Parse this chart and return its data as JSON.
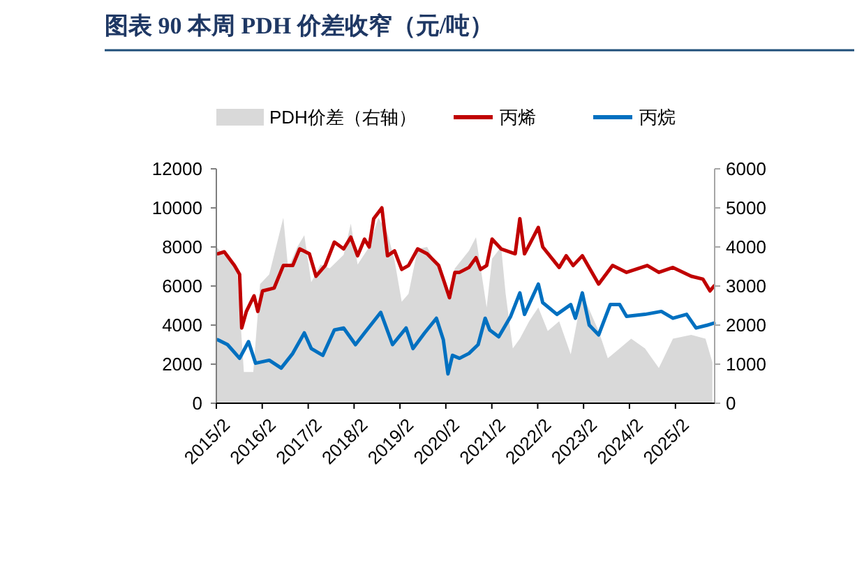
{
  "chart_data": {
    "type": "line",
    "title": "图表 90   本周 PDH 价差收窄（元/吨）",
    "xlim": [
      "2015-02-01",
      "2025-12-10"
    ],
    "xticks": [
      {
        "value": "2015-02-01",
        "label": "2015/2"
      },
      {
        "value": "2016-02-01",
        "label": "2016/2"
      },
      {
        "value": "2017-02-01",
        "label": "2017/2"
      },
      {
        "value": "2018-02-01",
        "label": "2018/2"
      },
      {
        "value": "2019-02-01",
        "label": "2019/2"
      },
      {
        "value": "2020-02-01",
        "label": "2020/2"
      },
      {
        "value": "2021-02-01",
        "label": "2021/2"
      },
      {
        "value": "2022-02-01",
        "label": "2022/2"
      },
      {
        "value": "2023-02-01",
        "label": "2023/2"
      },
      {
        "value": "2024-02-01",
        "label": "2024/2"
      },
      {
        "value": "2025-02-01",
        "label": "2025/2"
      }
    ],
    "ylim": [
      0,
      12000
    ],
    "yticks": [
      0,
      2000,
      4000,
      6000,
      8000,
      10000,
      12000
    ],
    "y2lim": [
      0,
      6000
    ],
    "y2ticks": [
      0,
      1000,
      2000,
      3000,
      4000,
      5000,
      6000
    ],
    "legend": "top",
    "grid": false,
    "series": [
      {
        "name": "PDH价差（右轴）",
        "type": "area",
        "axis": "y2",
        "color": "#d9d9d9",
        "x": [
          "2015-02-01",
          "2015-07-15",
          "2015-09-08",
          "2015-11-22",
          "2016-01-15",
          "2016-03-28",
          "2016-07-18",
          "2016-08-25",
          "2016-11-06",
          "2017-01-01",
          "2017-02-25",
          "2017-05-10",
          "2017-07-22",
          "2017-11-10",
          "2018-01-06",
          "2018-03-01",
          "2018-06-01",
          "2018-08-13",
          "2018-10-25",
          "2018-12-20",
          "2019-02-15",
          "2019-04-10",
          "2019-06-22",
          "2019-09-05",
          "2019-11-18",
          "2020-01-12",
          "2020-02-18",
          "2020-04-13",
          "2020-08-03",
          "2020-09-28",
          "2020-12-22",
          "2021-02-03",
          "2021-04-16",
          "2021-05-22",
          "2021-07-18",
          "2021-09-12",
          "2021-11-25",
          "2022-02-06",
          "2022-04-22",
          "2022-07-22",
          "2022-10-22",
          "2023-01-22",
          "2023-06-01",
          "2023-08-13",
          "2023-11-15",
          "2024-02-15",
          "2024-06-04",
          "2024-09-22",
          "2025-01-12",
          "2025-06-07",
          "2025-09-28",
          "2025-11-22"
        ],
        "values": [
          4000,
          3450,
          800,
          800,
          3050,
          3300,
          4750,
          3450,
          4000,
          4300,
          3100,
          3550,
          3450,
          3800,
          4600,
          3550,
          4000,
          4750,
          4350,
          3650,
          2600,
          2800,
          3950,
          4000,
          3550,
          3050,
          2800,
          3450,
          3900,
          4250,
          2450,
          3700,
          4000,
          2800,
          1400,
          1650,
          2100,
          2450,
          1850,
          2100,
          1250,
          2800,
          1850,
          1150,
          1400,
          1650,
          1400,
          900,
          1650,
          1750,
          1650,
          1050
        ]
      },
      {
        "name": "丙烯",
        "color": "#c00000",
        "x": [
          "2015-02-12",
          "2015-04-05",
          "2015-06-25",
          "2015-08-05",
          "2015-08-22",
          "2015-09-28",
          "2015-11-28",
          "2015-12-28",
          "2016-02-04",
          "2016-05-06",
          "2016-07-18",
          "2016-10-01",
          "2016-11-25",
          "2017-02-10",
          "2017-04-04",
          "2017-06-16",
          "2017-08-28",
          "2017-11-10",
          "2018-01-06",
          "2018-03-01",
          "2018-04-25",
          "2018-06-01",
          "2018-07-07",
          "2018-09-10",
          "2018-10-25",
          "2018-12-20",
          "2019-02-15",
          "2019-04-10",
          "2019-06-22",
          "2019-09-05",
          "2019-12-06",
          "2020-01-12",
          "2020-03-01",
          "2020-04-13",
          "2020-05-20",
          "2020-08-03",
          "2020-09-28",
          "2020-11-03",
          "2020-12-22",
          "2021-02-03",
          "2021-04-16",
          "2021-08-06",
          "2021-09-12",
          "2021-10-19",
          "2022-02-06",
          "2022-03-13",
          "2022-07-22",
          "2022-09-16",
          "2022-11-10",
          "2023-01-22",
          "2023-06-01",
          "2023-09-20",
          "2024-01-09",
          "2024-06-22",
          "2024-09-22",
          "2025-01-12",
          "2025-06-07",
          "2025-09-08",
          "2025-11-03",
          "2025-12-05"
        ],
        "values": [
          7650,
          7750,
          7050,
          6600,
          3850,
          4700,
          5500,
          4700,
          5750,
          5900,
          7050,
          7050,
          7900,
          7650,
          6500,
          7050,
          8250,
          7900,
          8500,
          7550,
          8400,
          8000,
          9450,
          10000,
          7550,
          7800,
          6850,
          7050,
          7900,
          7650,
          7050,
          6350,
          5400,
          6700,
          6700,
          6950,
          7450,
          6850,
          7050,
          8400,
          7900,
          7650,
          9450,
          7650,
          9000,
          8000,
          6950,
          7550,
          7050,
          7550,
          6100,
          7050,
          6700,
          7050,
          6700,
          6950,
          6500,
          6350,
          5750,
          6000
        ]
      },
      {
        "name": "丙烷",
        "color": "#0070c0",
        "x": [
          "2015-02-12",
          "2015-05-01",
          "2015-08-05",
          "2015-10-15",
          "2015-12-10",
          "2016-03-28",
          "2016-07-01",
          "2016-10-01",
          "2017-01-01",
          "2017-02-25",
          "2017-05-28",
          "2017-08-28",
          "2017-11-10",
          "2018-02-12",
          "2018-04-25",
          "2018-09-01",
          "2018-12-04",
          "2019-03-22",
          "2019-05-16",
          "2019-08-16",
          "2019-11-18",
          "2020-01-12",
          "2020-02-18",
          "2020-03-25",
          "2020-05-20",
          "2020-08-03",
          "2020-10-15",
          "2020-12-10",
          "2021-01-15",
          "2021-03-28",
          "2021-07-01",
          "2021-09-12",
          "2021-10-19",
          "2022-02-06",
          "2022-03-13",
          "2022-07-04",
          "2022-10-22",
          "2022-11-28",
          "2023-01-22",
          "2023-03-18",
          "2023-06-01",
          "2023-09-01",
          "2023-11-15",
          "2024-01-09",
          "2024-06-04",
          "2024-10-12",
          "2025-01-12",
          "2025-05-01",
          "2025-07-15",
          "2025-10-15",
          "2025-12-05"
        ],
        "values": [
          3250,
          3000,
          2300,
          3150,
          2050,
          2200,
          1800,
          2550,
          3600,
          2800,
          2450,
          3750,
          3850,
          3000,
          3600,
          4650,
          3000,
          3850,
          2800,
          3600,
          4350,
          3250,
          1500,
          2450,
          2300,
          2550,
          3000,
          4350,
          3750,
          3400,
          4450,
          5650,
          4550,
          6100,
          5150,
          4550,
          5050,
          4350,
          5650,
          4000,
          3500,
          5050,
          5050,
          4450,
          4550,
          4700,
          4350,
          4550,
          3850,
          4000,
          4100
        ]
      }
    ]
  }
}
